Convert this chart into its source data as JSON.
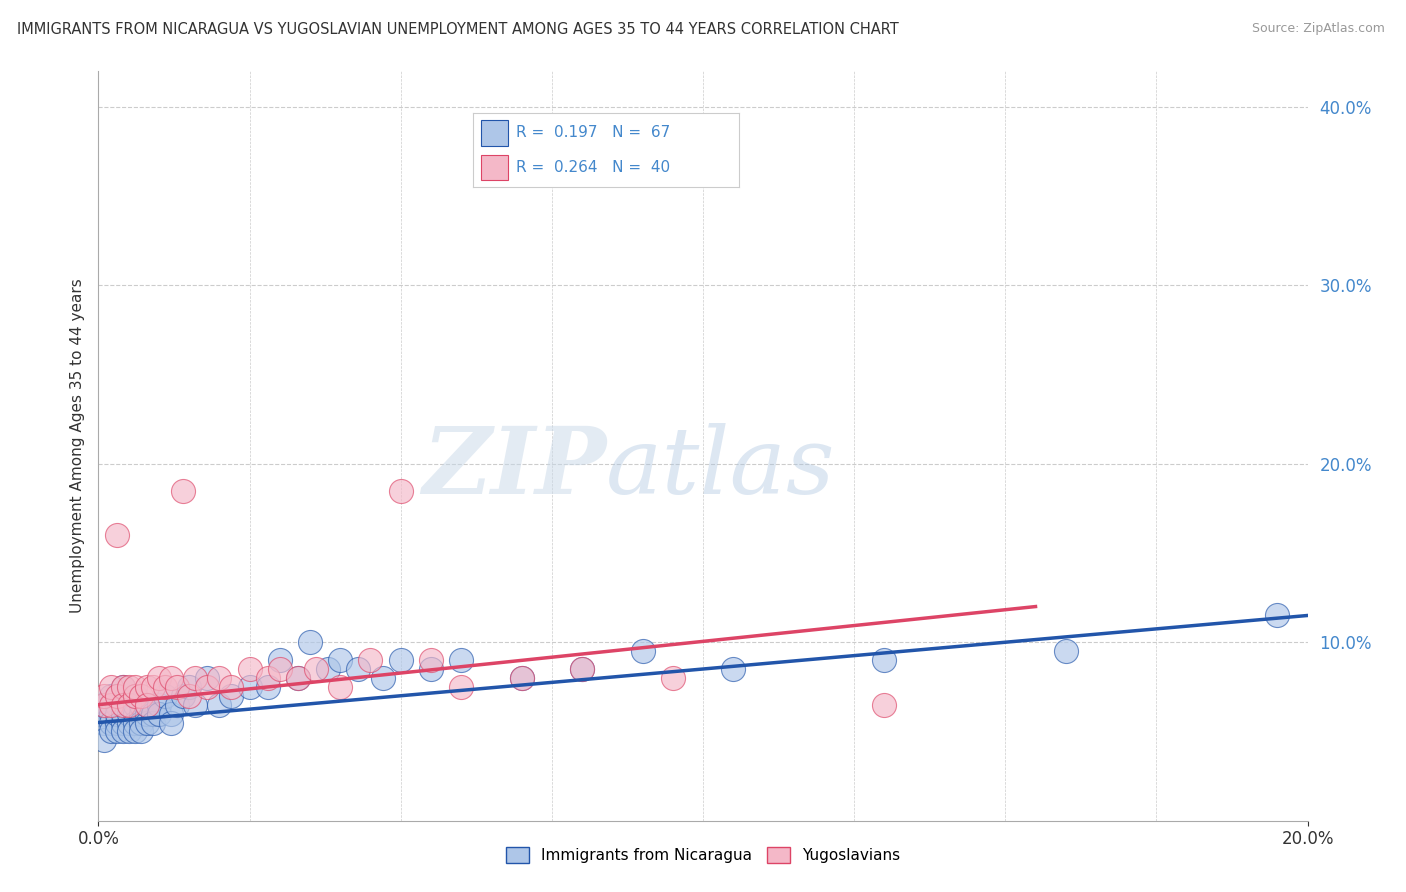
{
  "title": "IMMIGRANTS FROM NICARAGUA VS YUGOSLAVIAN UNEMPLOYMENT AMONG AGES 35 TO 44 YEARS CORRELATION CHART",
  "source": "Source: ZipAtlas.com",
  "ylabel": "Unemployment Among Ages 35 to 44 years",
  "legend_label_1": "Immigrants from Nicaragua",
  "legend_label_2": "Yugoslavians",
  "R1": 0.197,
  "N1": 67,
  "R2": 0.264,
  "N2": 40,
  "color1": "#aec6e8",
  "color2": "#f4b8c8",
  "line_color1": "#2255aa",
  "line_color2": "#dd4466",
  "xlim": [
    0.0,
    0.2
  ],
  "ylim": [
    0.0,
    0.42
  ],
  "watermark_zip": "ZIP",
  "watermark_atlas": "atlas",
  "background_color": "#ffffff",
  "grid_color": "#cccccc",
  "tick_color": "#4488cc",
  "scatter1_x": [
    0.0005,
    0.001,
    0.001,
    0.001,
    0.002,
    0.002,
    0.002,
    0.002,
    0.003,
    0.003,
    0.003,
    0.003,
    0.003,
    0.004,
    0.004,
    0.004,
    0.004,
    0.004,
    0.005,
    0.005,
    0.005,
    0.005,
    0.006,
    0.006,
    0.006,
    0.006,
    0.006,
    0.007,
    0.007,
    0.007,
    0.007,
    0.008,
    0.008,
    0.008,
    0.009,
    0.009,
    0.01,
    0.01,
    0.011,
    0.012,
    0.012,
    0.013,
    0.014,
    0.015,
    0.016,
    0.018,
    0.02,
    0.022,
    0.025,
    0.028,
    0.03,
    0.033,
    0.035,
    0.038,
    0.04,
    0.043,
    0.047,
    0.05,
    0.055,
    0.06,
    0.07,
    0.08,
    0.09,
    0.105,
    0.13,
    0.16,
    0.195
  ],
  "scatter1_y": [
    0.06,
    0.055,
    0.065,
    0.045,
    0.06,
    0.055,
    0.05,
    0.07,
    0.055,
    0.065,
    0.05,
    0.06,
    0.07,
    0.055,
    0.06,
    0.065,
    0.05,
    0.075,
    0.055,
    0.06,
    0.065,
    0.05,
    0.06,
    0.065,
    0.055,
    0.07,
    0.05,
    0.06,
    0.065,
    0.055,
    0.05,
    0.06,
    0.055,
    0.065,
    0.06,
    0.055,
    0.065,
    0.06,
    0.07,
    0.06,
    0.055,
    0.065,
    0.07,
    0.075,
    0.065,
    0.08,
    0.065,
    0.07,
    0.075,
    0.075,
    0.09,
    0.08,
    0.1,
    0.085,
    0.09,
    0.085,
    0.08,
    0.09,
    0.085,
    0.09,
    0.08,
    0.085,
    0.095,
    0.085,
    0.09,
    0.095,
    0.115
  ],
  "scatter2_x": [
    0.001,
    0.001,
    0.002,
    0.002,
    0.003,
    0.003,
    0.004,
    0.004,
    0.005,
    0.005,
    0.006,
    0.006,
    0.007,
    0.008,
    0.008,
    0.009,
    0.01,
    0.011,
    0.012,
    0.013,
    0.014,
    0.015,
    0.016,
    0.018,
    0.02,
    0.022,
    0.025,
    0.028,
    0.03,
    0.033,
    0.036,
    0.04,
    0.045,
    0.05,
    0.055,
    0.06,
    0.07,
    0.08,
    0.095,
    0.13
  ],
  "scatter2_y": [
    0.065,
    0.07,
    0.065,
    0.075,
    0.16,
    0.07,
    0.075,
    0.065,
    0.075,
    0.065,
    0.07,
    0.075,
    0.07,
    0.075,
    0.065,
    0.075,
    0.08,
    0.075,
    0.08,
    0.075,
    0.185,
    0.07,
    0.08,
    0.075,
    0.08,
    0.075,
    0.085,
    0.08,
    0.085,
    0.08,
    0.085,
    0.075,
    0.09,
    0.185,
    0.09,
    0.075,
    0.08,
    0.085,
    0.08,
    0.065
  ],
  "trendline1_x0": 0.0,
  "trendline1_x1": 0.2,
  "trendline1_y0": 0.055,
  "trendline1_y1": 0.115,
  "trendline2_x0": 0.0,
  "trendline2_x1": 0.155,
  "trendline2_y0": 0.065,
  "trendline2_y1": 0.12
}
